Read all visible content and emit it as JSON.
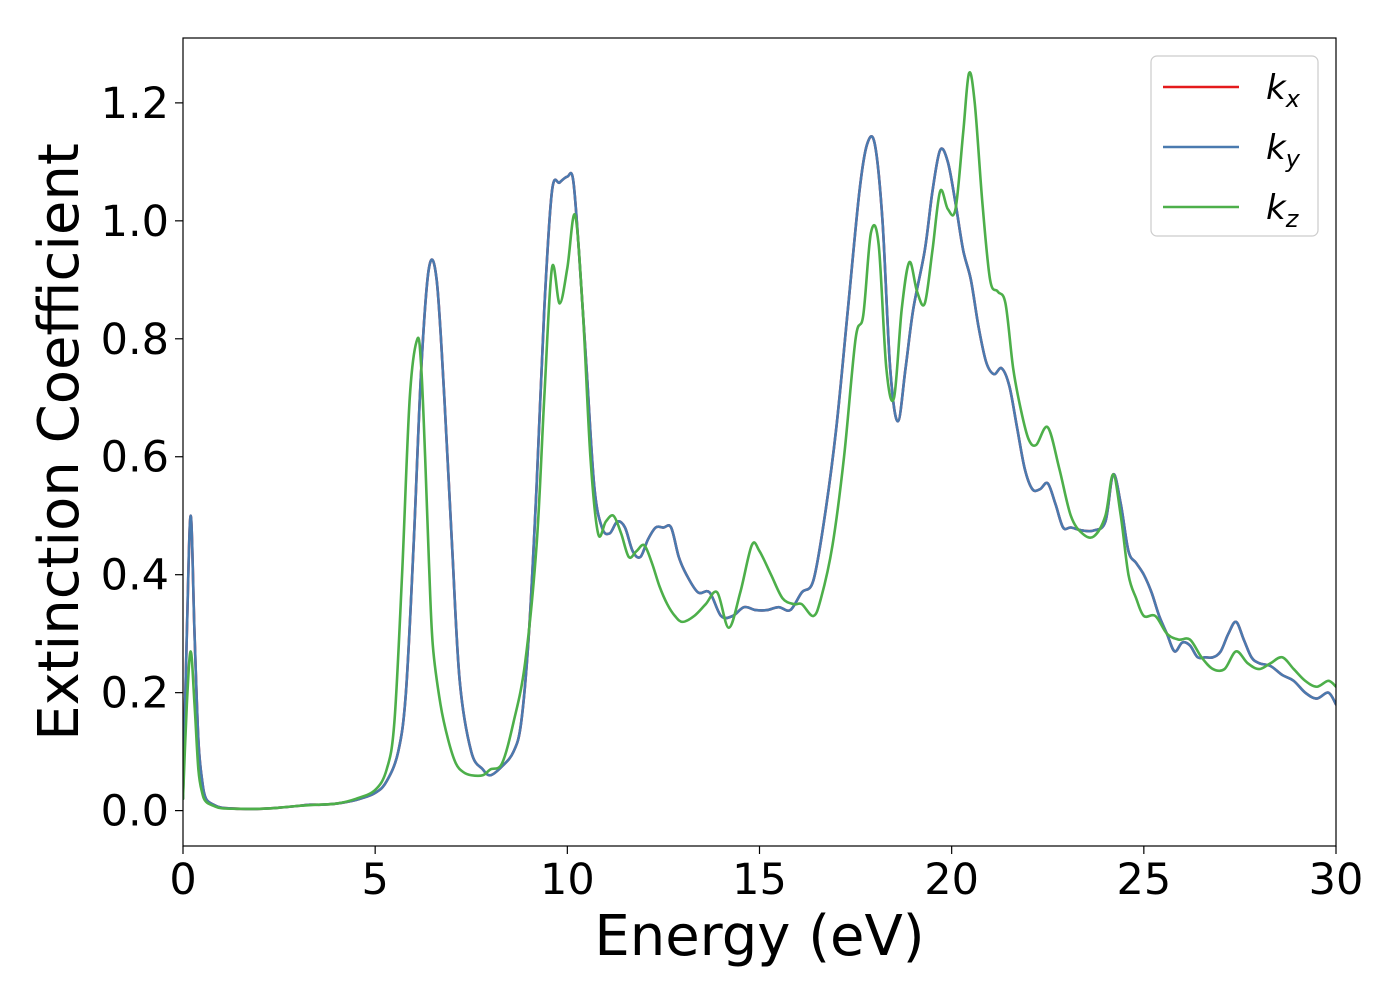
{
  "chart_data": {
    "type": "line",
    "xlabel": "Energy (eV)",
    "ylabel": "Extinction Coefficient",
    "xlim": [
      0,
      30
    ],
    "ylim": [
      -0.06,
      1.31
    ],
    "xticks": [
      0,
      5,
      10,
      15,
      20,
      25,
      30
    ],
    "xtick_labels": [
      "0",
      "5",
      "10",
      "15",
      "20",
      "25",
      "30"
    ],
    "yticks": [
      0.0,
      0.2,
      0.4,
      0.6,
      0.8,
      1.0,
      1.2
    ],
    "ytick_labels": [
      "0.0",
      "0.2",
      "0.4",
      "0.6",
      "0.8",
      "1.0",
      "1.2"
    ],
    "grid": false,
    "legend_position": "top-right",
    "series": [
      {
        "name": "k_x",
        "label_main": "k",
        "label_sub": "x",
        "color": "#e41a1c",
        "x": [
          0,
          0.1,
          0.2,
          0.3,
          0.4,
          0.5,
          0.6,
          0.8,
          1.0,
          1.5,
          2.0,
          2.5,
          3.0,
          3.3,
          3.6,
          4.0,
          4.5,
          5.0,
          5.3,
          5.6,
          5.8,
          6.0,
          6.2,
          6.4,
          6.6,
          6.8,
          7.0,
          7.2,
          7.5,
          7.8,
          8.0,
          8.3,
          8.6,
          8.8,
          9.0,
          9.2,
          9.4,
          9.6,
          9.8,
          10.0,
          10.15,
          10.3,
          10.5,
          10.7,
          10.9,
          11.1,
          11.3,
          11.5,
          11.7,
          11.9,
          12.1,
          12.3,
          12.5,
          12.7,
          12.9,
          13.1,
          13.4,
          13.7,
          14.0,
          14.3,
          14.6,
          14.9,
          15.2,
          15.5,
          15.8,
          16.1,
          16.4,
          16.7,
          17.0,
          17.3,
          17.6,
          17.8,
          18.0,
          18.2,
          18.4,
          18.6,
          18.8,
          19.0,
          19.3,
          19.5,
          19.7,
          19.9,
          20.1,
          20.3,
          20.5,
          20.7,
          20.9,
          21.1,
          21.3,
          21.5,
          21.7,
          21.9,
          22.1,
          22.3,
          22.5,
          22.7,
          22.9,
          23.1,
          23.4,
          23.7,
          24.0,
          24.2,
          24.4,
          24.6,
          24.8,
          25.0,
          25.2,
          25.4,
          25.6,
          25.8,
          26.0,
          26.2,
          26.4,
          26.6,
          26.8,
          27.0,
          27.2,
          27.4,
          27.6,
          27.8,
          28.0,
          28.3,
          28.6,
          28.9,
          29.2,
          29.5,
          29.8,
          30.0
        ],
        "y": [
          0.02,
          0.3,
          0.5,
          0.3,
          0.12,
          0.05,
          0.02,
          0.01,
          0.005,
          0.003,
          0.003,
          0.005,
          0.008,
          0.01,
          0.01,
          0.012,
          0.018,
          0.03,
          0.05,
          0.1,
          0.2,
          0.45,
          0.75,
          0.92,
          0.9,
          0.7,
          0.45,
          0.22,
          0.1,
          0.07,
          0.06,
          0.075,
          0.1,
          0.15,
          0.3,
          0.55,
          0.85,
          1.05,
          1.065,
          1.075,
          1.07,
          0.95,
          0.75,
          0.55,
          0.48,
          0.47,
          0.49,
          0.48,
          0.44,
          0.43,
          0.46,
          0.48,
          0.48,
          0.48,
          0.43,
          0.4,
          0.37,
          0.37,
          0.33,
          0.33,
          0.345,
          0.34,
          0.34,
          0.345,
          0.34,
          0.37,
          0.39,
          0.5,
          0.65,
          0.85,
          1.05,
          1.13,
          1.13,
          1.0,
          0.75,
          0.66,
          0.75,
          0.85,
          0.95,
          1.05,
          1.12,
          1.1,
          1.03,
          0.95,
          0.9,
          0.82,
          0.76,
          0.74,
          0.75,
          0.72,
          0.65,
          0.58,
          0.545,
          0.545,
          0.555,
          0.52,
          0.48,
          0.48,
          0.475,
          0.475,
          0.49,
          0.57,
          0.52,
          0.44,
          0.42,
          0.4,
          0.37,
          0.33,
          0.3,
          0.27,
          0.285,
          0.28,
          0.26,
          0.26,
          0.26,
          0.27,
          0.3,
          0.32,
          0.29,
          0.26,
          0.25,
          0.245,
          0.23,
          0.22,
          0.2,
          0.19,
          0.2,
          0.18
        ]
      },
      {
        "name": "k_y",
        "label_main": "k",
        "label_sub": "y",
        "color": "#4a7aaf",
        "x": [
          0,
          0.1,
          0.2,
          0.3,
          0.4,
          0.5,
          0.6,
          0.8,
          1.0,
          1.5,
          2.0,
          2.5,
          3.0,
          3.3,
          3.6,
          4.0,
          4.5,
          5.0,
          5.3,
          5.6,
          5.8,
          6.0,
          6.2,
          6.4,
          6.6,
          6.8,
          7.0,
          7.2,
          7.5,
          7.8,
          8.0,
          8.3,
          8.6,
          8.8,
          9.0,
          9.2,
          9.4,
          9.6,
          9.8,
          10.0,
          10.15,
          10.3,
          10.5,
          10.7,
          10.9,
          11.1,
          11.3,
          11.5,
          11.7,
          11.9,
          12.1,
          12.3,
          12.5,
          12.7,
          12.9,
          13.1,
          13.4,
          13.7,
          14.0,
          14.3,
          14.6,
          14.9,
          15.2,
          15.5,
          15.8,
          16.1,
          16.4,
          16.7,
          17.0,
          17.3,
          17.6,
          17.8,
          18.0,
          18.2,
          18.4,
          18.6,
          18.8,
          19.0,
          19.3,
          19.5,
          19.7,
          19.9,
          20.1,
          20.3,
          20.5,
          20.7,
          20.9,
          21.1,
          21.3,
          21.5,
          21.7,
          21.9,
          22.1,
          22.3,
          22.5,
          22.7,
          22.9,
          23.1,
          23.4,
          23.7,
          24.0,
          24.2,
          24.4,
          24.6,
          24.8,
          25.0,
          25.2,
          25.4,
          25.6,
          25.8,
          26.0,
          26.2,
          26.4,
          26.6,
          26.8,
          27.0,
          27.2,
          27.4,
          27.6,
          27.8,
          28.0,
          28.3,
          28.6,
          28.9,
          29.2,
          29.5,
          29.8,
          30.0
        ],
        "y": [
          0.02,
          0.3,
          0.5,
          0.3,
          0.12,
          0.05,
          0.02,
          0.01,
          0.005,
          0.003,
          0.003,
          0.005,
          0.008,
          0.01,
          0.01,
          0.012,
          0.018,
          0.03,
          0.05,
          0.1,
          0.2,
          0.45,
          0.75,
          0.92,
          0.9,
          0.7,
          0.45,
          0.22,
          0.1,
          0.07,
          0.06,
          0.075,
          0.1,
          0.15,
          0.3,
          0.55,
          0.85,
          1.05,
          1.065,
          1.075,
          1.07,
          0.95,
          0.75,
          0.55,
          0.48,
          0.47,
          0.49,
          0.48,
          0.44,
          0.43,
          0.46,
          0.48,
          0.48,
          0.48,
          0.43,
          0.4,
          0.37,
          0.37,
          0.33,
          0.33,
          0.345,
          0.34,
          0.34,
          0.345,
          0.34,
          0.37,
          0.39,
          0.5,
          0.65,
          0.85,
          1.05,
          1.13,
          1.13,
          1.0,
          0.75,
          0.66,
          0.75,
          0.85,
          0.95,
          1.05,
          1.12,
          1.1,
          1.03,
          0.95,
          0.9,
          0.82,
          0.76,
          0.74,
          0.75,
          0.72,
          0.65,
          0.58,
          0.545,
          0.545,
          0.555,
          0.52,
          0.48,
          0.48,
          0.475,
          0.475,
          0.49,
          0.57,
          0.52,
          0.44,
          0.42,
          0.4,
          0.37,
          0.33,
          0.3,
          0.27,
          0.285,
          0.28,
          0.26,
          0.26,
          0.26,
          0.27,
          0.3,
          0.32,
          0.29,
          0.26,
          0.25,
          0.245,
          0.23,
          0.22,
          0.2,
          0.19,
          0.2,
          0.18
        ]
      },
      {
        "name": "k_z",
        "label_main": "k",
        "label_sub": "z",
        "color": "#4daf4a",
        "x": [
          0,
          0.1,
          0.2,
          0.3,
          0.4,
          0.5,
          0.6,
          0.8,
          1.0,
          1.5,
          2.0,
          2.5,
          3.0,
          3.5,
          4.0,
          4.5,
          5.0,
          5.3,
          5.5,
          5.7,
          5.9,
          6.1,
          6.2,
          6.3,
          6.4,
          6.5,
          6.7,
          6.9,
          7.1,
          7.3,
          7.5,
          7.8,
          8.0,
          8.3,
          8.6,
          8.9,
          9.2,
          9.4,
          9.6,
          9.8,
          10.0,
          10.2,
          10.4,
          10.6,
          10.8,
          11.0,
          11.2,
          11.4,
          11.6,
          11.8,
          12.0,
          12.2,
          12.4,
          12.6,
          12.8,
          13.0,
          13.3,
          13.6,
          13.9,
          14.2,
          14.5,
          14.8,
          15.0,
          15.3,
          15.6,
          15.9,
          16.1,
          16.4,
          16.6,
          16.9,
          17.2,
          17.5,
          17.7,
          17.9,
          18.1,
          18.3,
          18.5,
          18.7,
          18.9,
          19.1,
          19.3,
          19.5,
          19.7,
          19.9,
          20.1,
          20.3,
          20.45,
          20.6,
          20.8,
          21.0,
          21.2,
          21.4,
          21.6,
          21.8,
          22.0,
          22.2,
          22.5,
          22.8,
          23.1,
          23.4,
          23.7,
          24.0,
          24.2,
          24.4,
          24.6,
          24.8,
          25.0,
          25.3,
          25.6,
          25.9,
          26.2,
          26.5,
          26.8,
          27.1,
          27.4,
          27.7,
          28.0,
          28.3,
          28.6,
          28.9,
          29.2,
          29.5,
          29.8,
          30.0
        ],
        "y": [
          0.02,
          0.18,
          0.27,
          0.18,
          0.07,
          0.03,
          0.015,
          0.008,
          0.004,
          0.003,
          0.003,
          0.005,
          0.008,
          0.01,
          0.012,
          0.02,
          0.035,
          0.07,
          0.15,
          0.4,
          0.7,
          0.8,
          0.75,
          0.6,
          0.42,
          0.28,
          0.18,
          0.12,
          0.08,
          0.065,
          0.06,
          0.06,
          0.07,
          0.08,
          0.15,
          0.25,
          0.45,
          0.7,
          0.92,
          0.86,
          0.92,
          1.01,
          0.85,
          0.6,
          0.47,
          0.49,
          0.5,
          0.47,
          0.43,
          0.44,
          0.45,
          0.42,
          0.38,
          0.35,
          0.33,
          0.32,
          0.33,
          0.35,
          0.37,
          0.31,
          0.37,
          0.45,
          0.44,
          0.4,
          0.36,
          0.35,
          0.35,
          0.33,
          0.36,
          0.45,
          0.6,
          0.8,
          0.84,
          0.98,
          0.96,
          0.75,
          0.7,
          0.85,
          0.93,
          0.88,
          0.86,
          0.95,
          1.05,
          1.02,
          1.02,
          1.15,
          1.25,
          1.2,
          1.03,
          0.9,
          0.88,
          0.86,
          0.75,
          0.68,
          0.63,
          0.62,
          0.65,
          0.58,
          0.5,
          0.47,
          0.465,
          0.5,
          0.57,
          0.5,
          0.4,
          0.36,
          0.33,
          0.33,
          0.3,
          0.29,
          0.29,
          0.26,
          0.24,
          0.24,
          0.27,
          0.25,
          0.24,
          0.25,
          0.26,
          0.24,
          0.22,
          0.21,
          0.22,
          0.21
        ]
      }
    ]
  }
}
